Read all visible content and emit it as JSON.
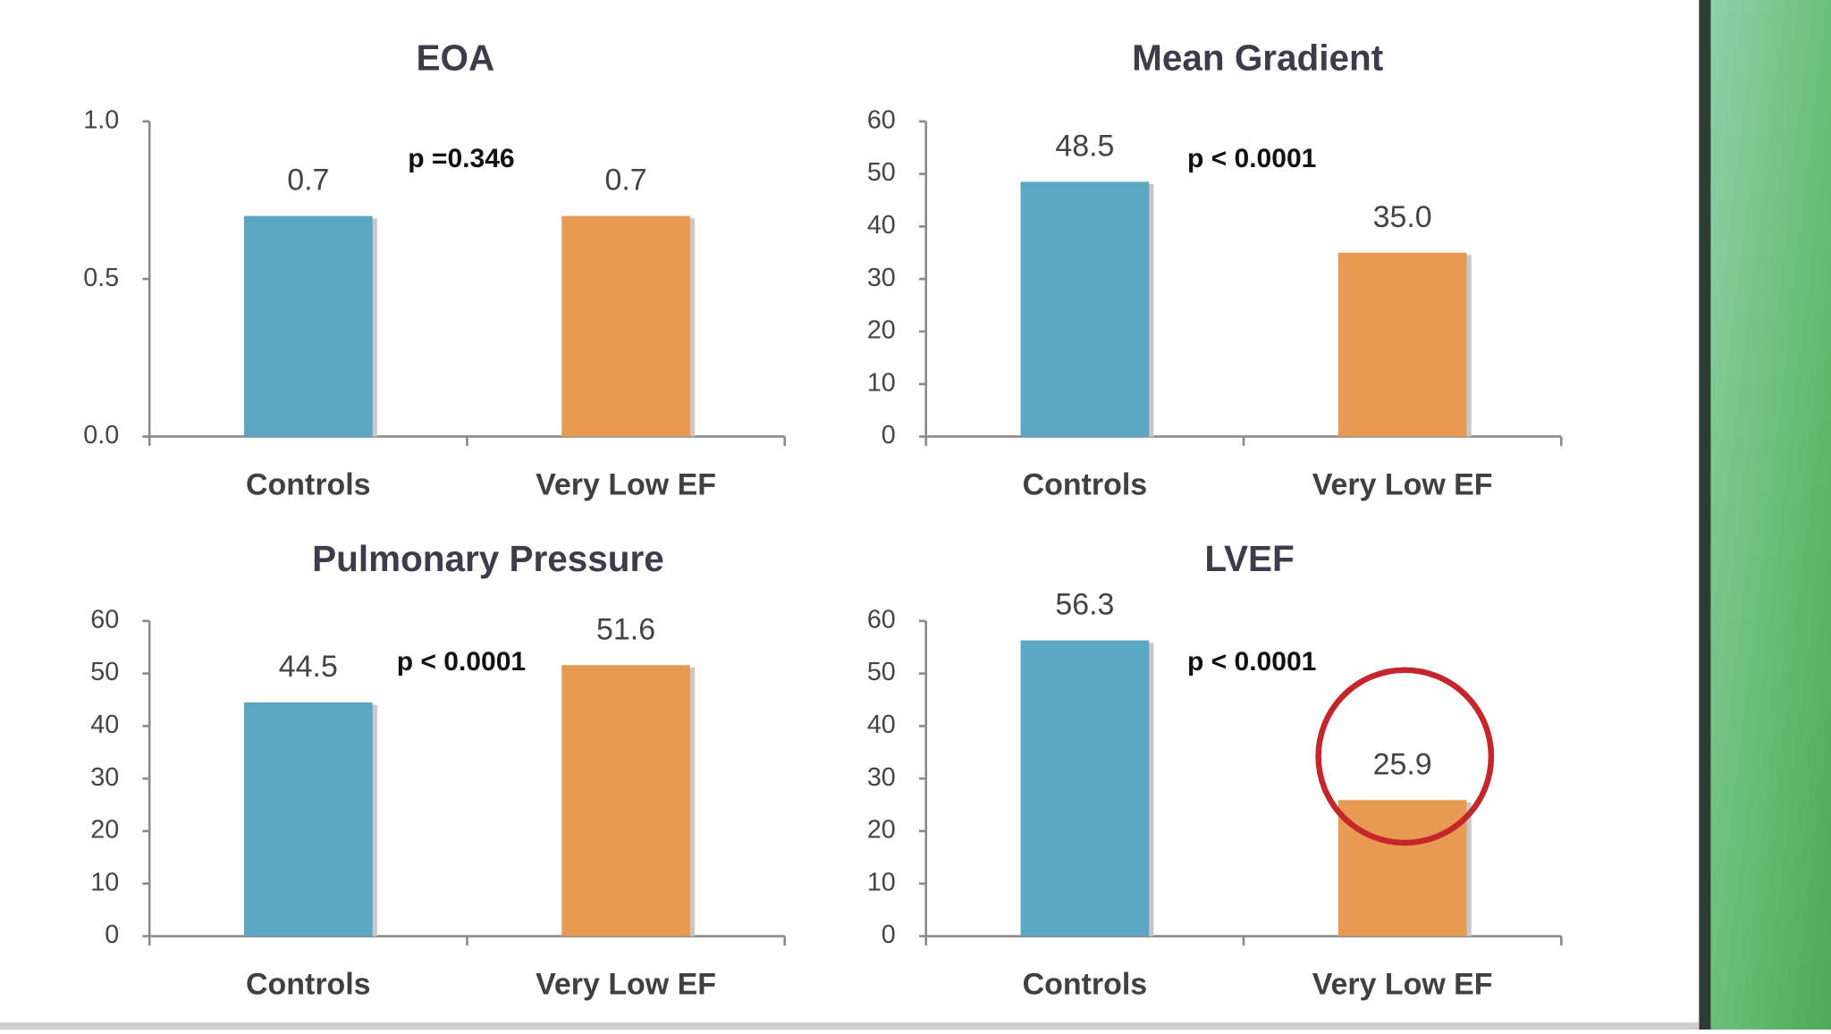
{
  "chart_data": [
    {
      "type": "bar",
      "title": "EOA",
      "categories": [
        "Controls",
        "Very Low EF"
      ],
      "values": [
        0.7,
        0.7
      ],
      "colors": [
        "#5ba6c3",
        "#e99a52"
      ],
      "ylim": [
        0,
        1
      ],
      "yticks": [
        {
          "value": 0,
          "label": "0.0"
        },
        {
          "value": 0.5,
          "label": "0.5"
        },
        {
          "value": 1,
          "label": "1.0"
        }
      ],
      "annotation": "p =0.346"
    },
    {
      "type": "bar",
      "title": "Mean Gradient",
      "categories": [
        "Controls",
        "Very Low EF"
      ],
      "values": [
        48.5,
        35
      ],
      "value_labels": [
        "48.5",
        "35.0"
      ],
      "colors": [
        "#5ba6c3",
        "#e99a52"
      ],
      "ylim": [
        0,
        60
      ],
      "yticks": [
        0,
        10,
        20,
        30,
        40,
        50,
        60
      ],
      "annotation": "p < 0.0001"
    },
    {
      "type": "bar",
      "title": "Pulmonary Pressure",
      "categories": [
        "Controls",
        "Very Low EF"
      ],
      "values": [
        44.5,
        51.6
      ],
      "colors": [
        "#5ba6c3",
        "#e99a52"
      ],
      "ylim": [
        0,
        60
      ],
      "yticks": [
        0,
        10,
        20,
        30,
        40,
        50,
        60
      ],
      "annotation": "p < 0.0001"
    },
    {
      "type": "bar",
      "title": "LVEF",
      "categories": [
        "Controls",
        "Very Low EF"
      ],
      "values": [
        56.3,
        25.9
      ],
      "colors": [
        "#5ba6c3",
        "#e99a52"
      ],
      "ylim": [
        0,
        60
      ],
      "yticks": [
        0,
        10,
        20,
        30,
        40,
        50,
        60
      ],
      "annotation": "p < 0.0001"
    }
  ]
}
